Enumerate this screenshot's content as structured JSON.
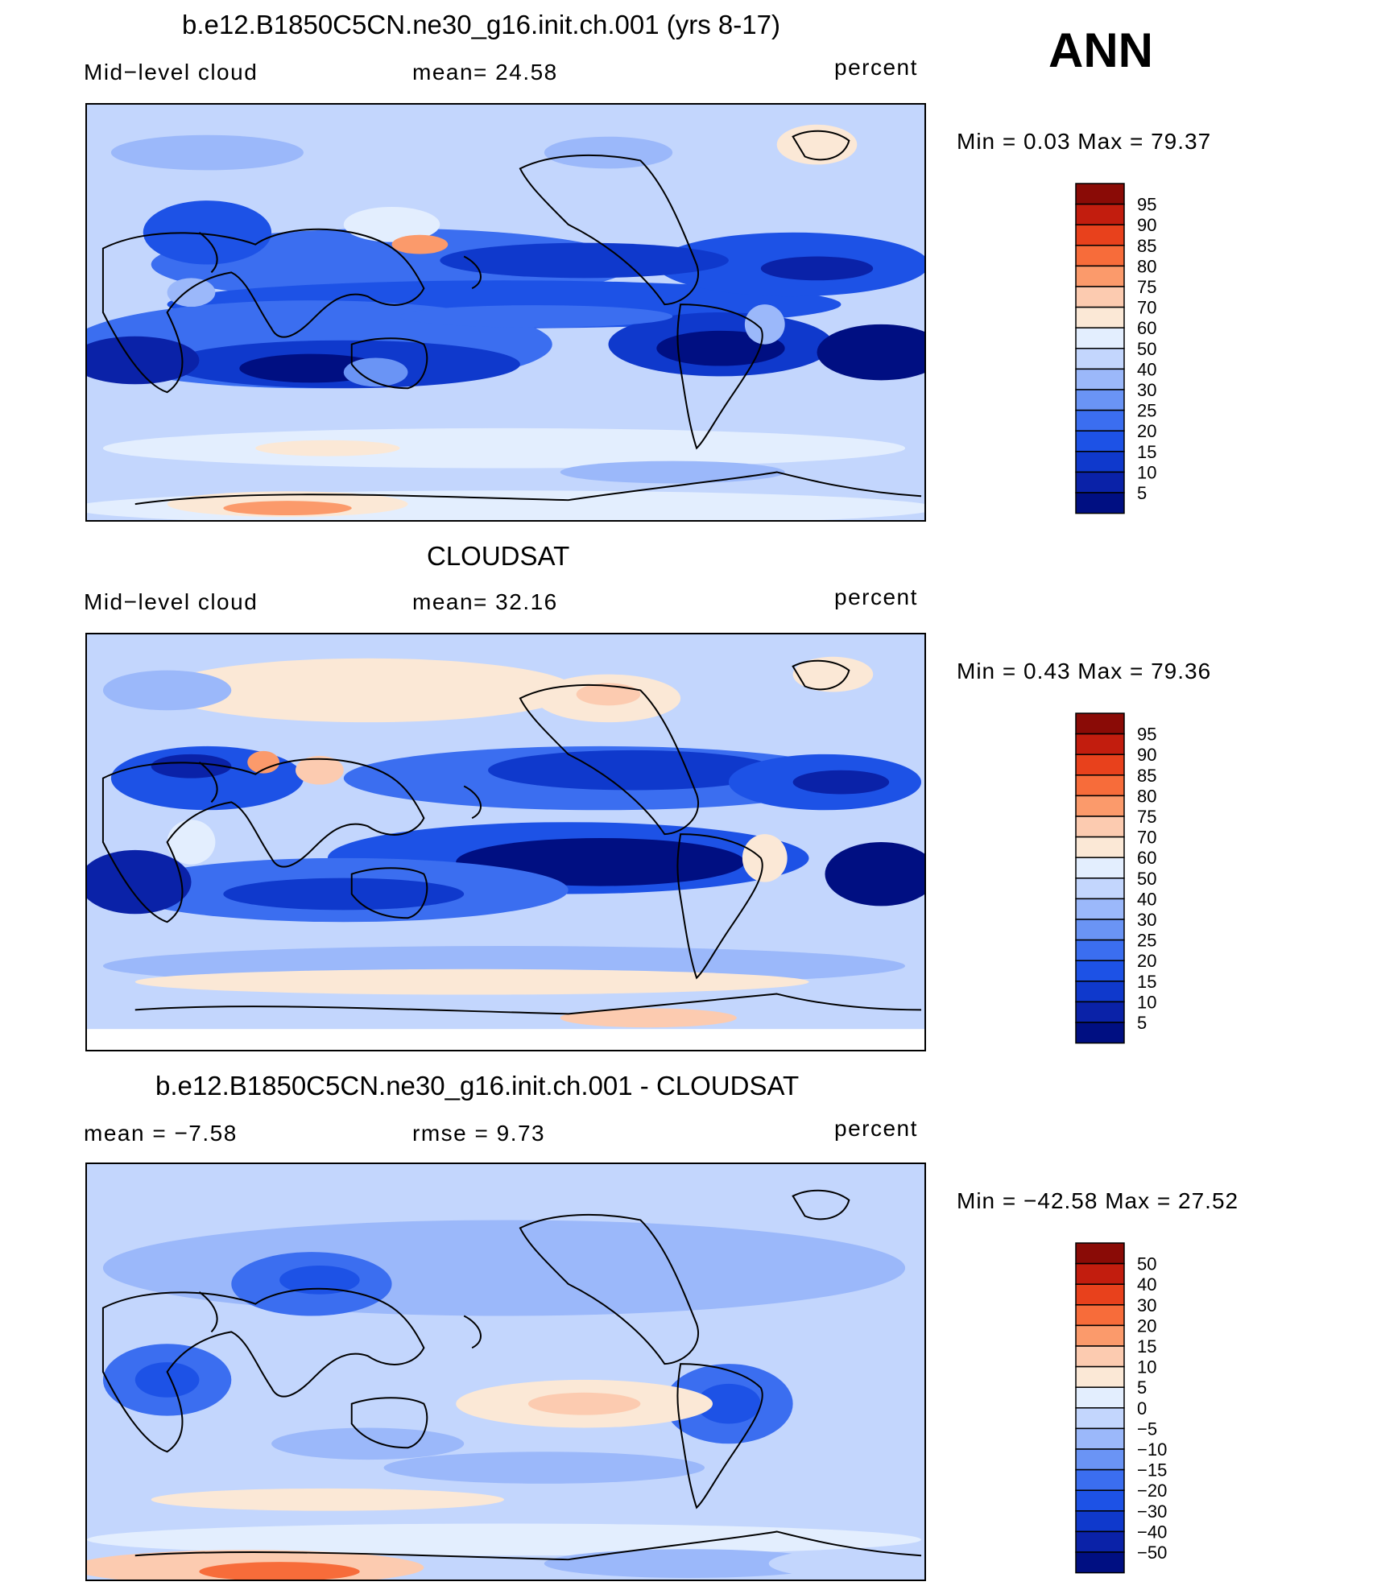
{
  "season": "ANN",
  "panels": [
    {
      "title": "b.e12.B1850C5CN.ne30_g16.init.ch.001 (yrs 8-17)",
      "left_label": "Mid−level cloud",
      "center_label": "mean=   24.58",
      "units": "percent",
      "minmax": "Min =     0.03  Max =    79.37",
      "colorbar": [
        "95",
        "90",
        "85",
        "80",
        "75",
        "70",
        "60",
        "50",
        "40",
        "30",
        "25",
        "20",
        "15",
        "10",
        "5"
      ]
    },
    {
      "title": "CLOUDSAT",
      "left_label": "Mid−level cloud",
      "center_label": "mean=   32.16",
      "units": "percent",
      "minmax": "Min =     0.43  Max =    79.36",
      "colorbar": [
        "95",
        "90",
        "85",
        "80",
        "75",
        "70",
        "60",
        "50",
        "40",
        "30",
        "25",
        "20",
        "15",
        "10",
        "5"
      ]
    },
    {
      "title": "b.e12.B1850C5CN.ne30_g16.init.ch.001 - CLOUDSAT",
      "left_label": "mean  =    −7.58",
      "center_label": "rmse  =     9.73",
      "units": "percent",
      "minmax": "Min  =  −42.58  Max  =    27.52",
      "colorbar": [
        "50",
        "40",
        "30",
        "20",
        "15",
        "10",
        "5",
        "0",
        "−5",
        "−10",
        "−15",
        "−20",
        "−30",
        "−40",
        "−50"
      ]
    }
  ],
  "palette": [
    "#000f82",
    "#0a22a8",
    "#0f39cc",
    "#1d52e6",
    "#3b6ef0",
    "#6a94f5",
    "#9bb8fa",
    "#c3d6fd",
    "#e3eefe",
    "#fbe8d6",
    "#fccbb0",
    "#fb9a6b",
    "#f76c3a",
    "#e8411c",
    "#c21d0e",
    "#8a0b06"
  ]
}
